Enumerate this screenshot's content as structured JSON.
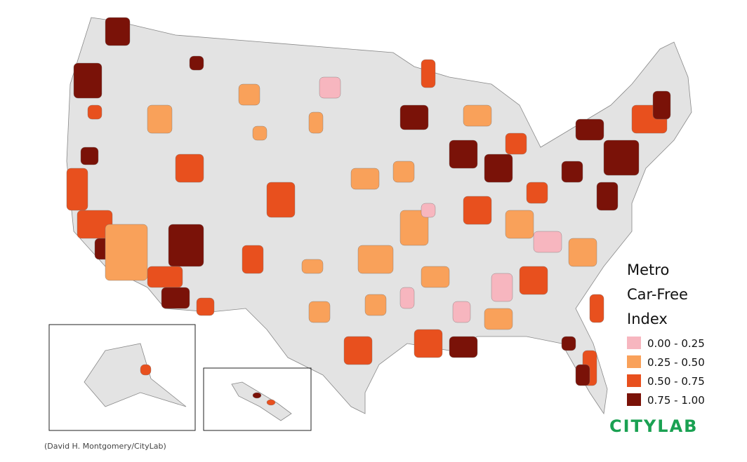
{
  "legend": {
    "title": [
      "Metro",
      "Car-Free",
      "Index"
    ],
    "items": [
      {
        "label": "0.00 - 0.25",
        "color": "#f7b6bf"
      },
      {
        "label": "0.25 - 0.50",
        "color": "#f9a15a"
      },
      {
        "label": "0.50 - 0.75",
        "color": "#e8501e"
      },
      {
        "label": "0.75 - 1.00",
        "color": "#7a1208"
      }
    ]
  },
  "logo": "CITYLAB",
  "credit": "(David H. Montgomery/CityLab)"
}
